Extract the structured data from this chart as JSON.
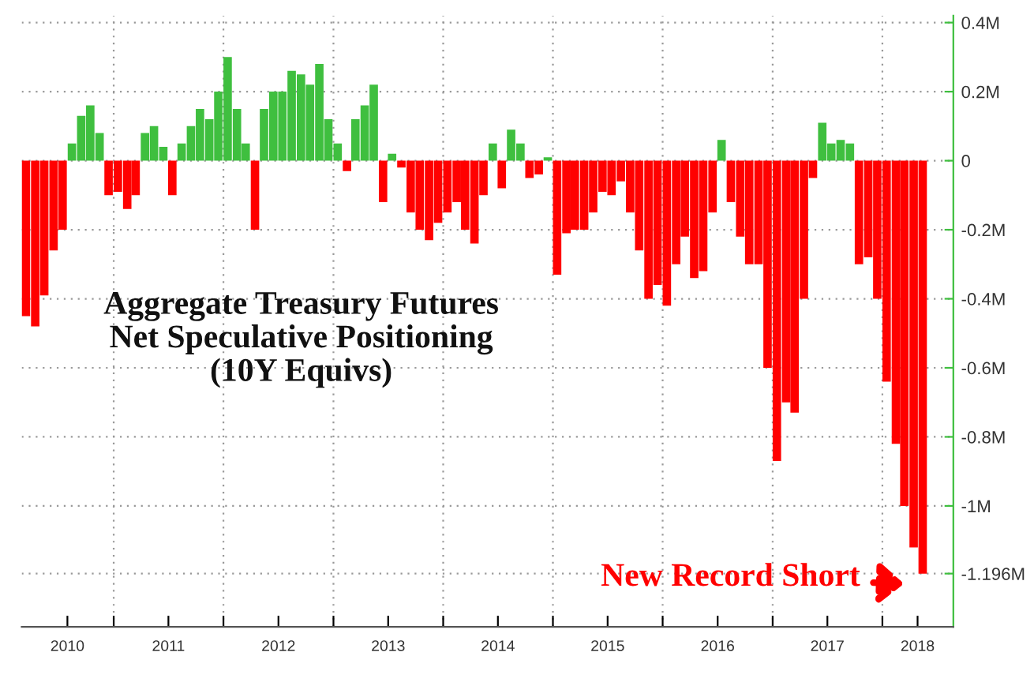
{
  "chart_data": {
    "type": "bar",
    "title": "Aggregate Treasury Futures\nNet Speculative Positioning\n(10Y Equivs)",
    "x": [
      "2010-03",
      "2010-04",
      "2010-05",
      "2010-06",
      "2010-07",
      "2010-08",
      "2010-09",
      "2010-10",
      "2010-11",
      "2010-12",
      "2011-01",
      "2011-02",
      "2011-03",
      "2011-04",
      "2011-05",
      "2011-06",
      "2011-07",
      "2011-08",
      "2011-09",
      "2011-10",
      "2011-11",
      "2011-12",
      "2012-01",
      "2012-02",
      "2012-03",
      "2012-04",
      "2012-05",
      "2012-06",
      "2012-07",
      "2012-08",
      "2012-09",
      "2012-10",
      "2012-11",
      "2012-12",
      "2013-01",
      "2013-02",
      "2013-03",
      "2013-04",
      "2013-05",
      "2013-06",
      "2013-07",
      "2013-08",
      "2013-09",
      "2013-10",
      "2013-11",
      "2013-12",
      "2014-01",
      "2014-02",
      "2014-03",
      "2014-04",
      "2014-05",
      "2014-06",
      "2014-07",
      "2014-08",
      "2014-09",
      "2014-10",
      "2014-11",
      "2014-12",
      "2015-01",
      "2015-02",
      "2015-03",
      "2015-04",
      "2015-05",
      "2015-06",
      "2015-07",
      "2015-08",
      "2015-09",
      "2015-10",
      "2015-11",
      "2015-12",
      "2016-01",
      "2016-02",
      "2016-03",
      "2016-04",
      "2016-05",
      "2016-06",
      "2016-07",
      "2016-08",
      "2016-09",
      "2016-10",
      "2016-11",
      "2016-12",
      "2017-01",
      "2017-02",
      "2017-03",
      "2017-04",
      "2017-05",
      "2017-06",
      "2017-07",
      "2017-08",
      "2017-09",
      "2017-10",
      "2017-11",
      "2017-12",
      "2018-01",
      "2018-02",
      "2018-03",
      "2018-04",
      "2018-05"
    ],
    "values": [
      -0.45,
      -0.48,
      -0.39,
      -0.26,
      -0.2,
      0.05,
      0.13,
      0.16,
      0.08,
      -0.1,
      -0.09,
      -0.14,
      -0.1,
      0.08,
      0.1,
      0.04,
      -0.1,
      0.05,
      0.1,
      0.15,
      0.12,
      0.2,
      0.3,
      0.15,
      0.05,
      -0.2,
      0.15,
      0.2,
      0.2,
      0.26,
      0.25,
      0.22,
      0.28,
      0.12,
      0.05,
      -0.03,
      0.12,
      0.16,
      0.22,
      -0.12,
      0.02,
      -0.02,
      -0.15,
      -0.2,
      -0.23,
      -0.18,
      -0.15,
      -0.12,
      -0.2,
      -0.24,
      -0.1,
      0.05,
      -0.08,
      0.09,
      0.05,
      -0.05,
      -0.04,
      0.01,
      -0.33,
      -0.21,
      -0.2,
      -0.2,
      -0.15,
      -0.09,
      -0.1,
      -0.06,
      -0.15,
      -0.26,
      -0.4,
      -0.36,
      -0.42,
      -0.3,
      -0.22,
      -0.34,
      -0.32,
      -0.15,
      0.06,
      -0.12,
      -0.22,
      -0.3,
      -0.3,
      -0.6,
      -0.87,
      -0.7,
      -0.73,
      -0.4,
      -0.05,
      0.11,
      0.05,
      0.06,
      0.05,
      -0.3,
      -0.28,
      -0.4,
      -0.64,
      -0.82,
      -1.0,
      -1.12,
      -1.196
    ],
    "colors": [
      "#ff0000",
      "#ff0000",
      "#ff0000",
      "#ff0000",
      "#ff0000",
      "#3fbf3f",
      "#3fbf3f",
      "#3fbf3f",
      "#3fbf3f",
      "#ff0000",
      "#ff0000",
      "#ff0000",
      "#ff0000",
      "#3fbf3f",
      "#3fbf3f",
      "#3fbf3f",
      "#ff0000",
      "#3fbf3f",
      "#3fbf3f",
      "#3fbf3f",
      "#3fbf3f",
      "#3fbf3f",
      "#3fbf3f",
      "#3fbf3f",
      "#3fbf3f",
      "#ff0000",
      "#3fbf3f",
      "#3fbf3f",
      "#3fbf3f",
      "#3fbf3f",
      "#3fbf3f",
      "#3fbf3f",
      "#3fbf3f",
      "#3fbf3f",
      "#3fbf3f",
      "#ff0000",
      "#3fbf3f",
      "#3fbf3f",
      "#3fbf3f",
      "#ff0000",
      "#3fbf3f",
      "#ff0000",
      "#ff0000",
      "#ff0000",
      "#ff0000",
      "#ff0000",
      "#ff0000",
      "#ff0000",
      "#ff0000",
      "#ff0000",
      "#ff0000",
      "#3fbf3f",
      "#ff0000",
      "#3fbf3f",
      "#3fbf3f",
      "#ff0000",
      "#ff0000",
      "#3fbf3f",
      "#ff0000",
      "#ff0000",
      "#ff0000",
      "#ff0000",
      "#ff0000",
      "#ff0000",
      "#ff0000",
      "#ff0000",
      "#ff0000",
      "#ff0000",
      "#ff0000",
      "#ff0000",
      "#ff0000",
      "#ff0000",
      "#ff0000",
      "#ff0000",
      "#ff0000",
      "#ff0000",
      "#3fbf3f",
      "#ff0000",
      "#ff0000",
      "#ff0000",
      "#ff0000",
      "#ff0000",
      "#ff0000",
      "#ff0000",
      "#ff0000",
      "#ff0000",
      "#ff0000",
      "#3fbf3f",
      "#3fbf3f",
      "#3fbf3f",
      "#3fbf3f",
      "#ff0000",
      "#ff0000",
      "#ff0000",
      "#ff0000",
      "#ff0000",
      "#ff0000",
      "#ff0000",
      "#ff0000"
    ],
    "xlim": [
      "2010-03-01",
      "2018-08-25"
    ],
    "xticks": [
      {
        "value": "2010-07-31",
        "label": "2010"
      },
      {
        "value": "2011-01-01",
        "label": null
      },
      {
        "value": "2011-07-02",
        "label": "2011"
      },
      {
        "value": "2012-01-01",
        "label": null
      },
      {
        "value": "2012-07-02",
        "label": "2012"
      },
      {
        "value": "2013-01-01",
        "label": null
      },
      {
        "value": "2013-07-02",
        "label": "2013"
      },
      {
        "value": "2014-01-01",
        "label": null
      },
      {
        "value": "2014-07-02",
        "label": "2014"
      },
      {
        "value": "2015-01-01",
        "label": null
      },
      {
        "value": "2015-07-02",
        "label": "2015"
      },
      {
        "value": "2016-01-01",
        "label": null
      },
      {
        "value": "2016-07-02",
        "label": "2016"
      },
      {
        "value": "2017-01-01",
        "label": null
      },
      {
        "value": "2017-07-02",
        "label": "2017"
      },
      {
        "value": "2018-01-01",
        "label": null
      },
      {
        "value": "2018-04-28",
        "label": "2018"
      }
    ],
    "ylim": [
      -1.35,
      0.42
    ],
    "yticks": [
      {
        "value": 0.4,
        "label": "0.4M"
      },
      {
        "value": 0.2,
        "label": "0.2M"
      },
      0,
      {
        "value": -0.2,
        "label": "-0.2M"
      },
      {
        "value": -0.4,
        "label": "-0.4M"
      },
      {
        "value": -0.6,
        "label": "-0.6M"
      },
      {
        "value": -0.8,
        "label": "-0.8M"
      },
      {
        "value": -1,
        "label": "-1M"
      },
      {
        "value": -1.196,
        "label": "-1.196M"
      }
    ],
    "annotations": [
      {
        "text": "New Record Short",
        "x": "2018-05",
        "y": -1.196
      }
    ],
    "grid": true,
    "legend": false
  }
}
